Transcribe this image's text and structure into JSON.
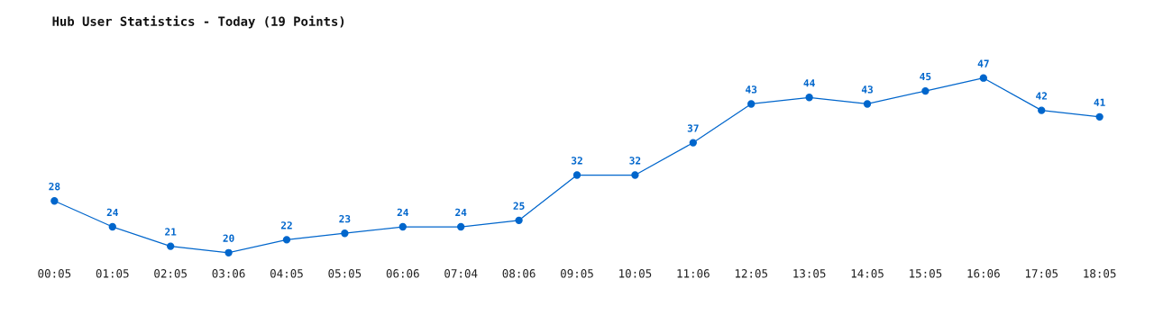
{
  "chart_data": {
    "type": "line",
    "title": "Hub User Statistics - Today (19 Points)",
    "categories": [
      "00:05",
      "01:05",
      "02:05",
      "03:06",
      "04:05",
      "05:05",
      "06:06",
      "07:04",
      "08:06",
      "09:05",
      "10:05",
      "11:06",
      "12:05",
      "13:05",
      "14:05",
      "15:05",
      "16:06",
      "17:05",
      "18:05"
    ],
    "series": [
      {
        "color": "#0066cc",
        "values": [
          28,
          24,
          21,
          20,
          22,
          23,
          24,
          24,
          25,
          32,
          32,
          37,
          43,
          44,
          43,
          45,
          47,
          42,
          41
        ]
      }
    ],
    "data_labels": true,
    "marker": "circle",
    "line_style": "solid",
    "grid": false,
    "legend": false,
    "tick_labels": "x"
  }
}
